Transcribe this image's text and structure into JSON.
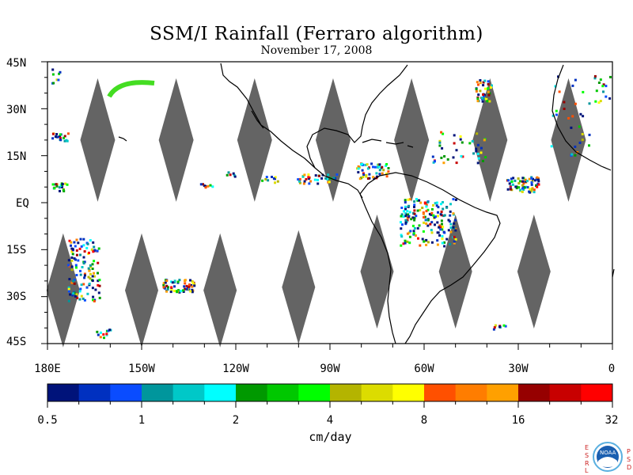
{
  "title": "SSM/I Rainfall (Ferraro algorithm)",
  "subtitle": "November 17, 2008",
  "lat_labels": [
    "45N",
    "30N",
    "15N",
    "EQ",
    "15S",
    "30S",
    "45S"
  ],
  "lon_labels": [
    "180E",
    "150W",
    "120W",
    "90W",
    "60W",
    "30W",
    "0"
  ],
  "colorbar": {
    "unit": "cm/day",
    "tick_labels": [
      "0.5",
      "1",
      "2",
      "4",
      "8",
      "16",
      "32"
    ],
    "colors": [
      "#00137a",
      "#0030c0",
      "#0a4cff",
      "#00969c",
      "#00c8c8",
      "#00ffff",
      "#009900",
      "#00c800",
      "#00ff00",
      "#b4b400",
      "#dcdc00",
      "#ffff00",
      "#ff5000",
      "#ff7d00",
      "#ffa000",
      "#960000",
      "#c80000",
      "#ff0000"
    ]
  },
  "map": {
    "lon_range": [
      -180,
      0
    ],
    "lat_range": [
      -45,
      45
    ],
    "swath_gap_color": "#646464",
    "upper_swath_gaps": [
      [
        -164,
        20
      ],
      [
        -139,
        20
      ],
      [
        -114,
        20
      ],
      [
        -89,
        20
      ],
      [
        -64,
        20
      ],
      [
        -39,
        20
      ],
      [
        -14,
        20
      ]
    ],
    "lower_swath_gaps": [
      [
        -175,
        -28
      ],
      [
        -150,
        -28
      ],
      [
        -125,
        -28
      ],
      [
        -100,
        -27
      ],
      [
        -75,
        -22
      ],
      [
        -50,
        -22
      ],
      [
        -25,
        -22
      ]
    ]
  },
  "logo": {
    "left_letters": [
      "E",
      "S",
      "R",
      "L"
    ],
    "right_letters": [
      "P",
      "S",
      "D"
    ],
    "badge": "NOAA"
  }
}
